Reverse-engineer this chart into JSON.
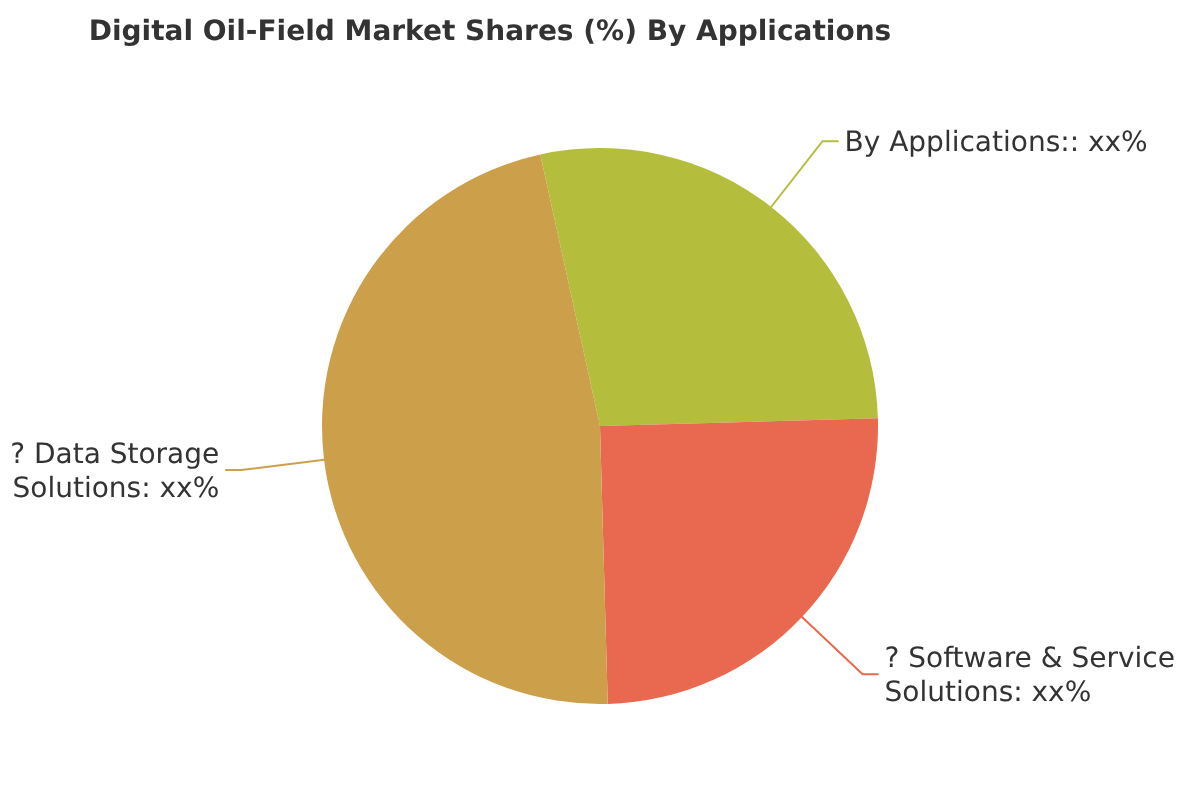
{
  "chart_data": {
    "type": "pie",
    "title": "Digital Oil-Field Market Shares (%) By Applications",
    "categories": [
      "By Applications:: xx%",
      "? Software & Service Solutions: xx%",
      "? Data Storage Solutions: xx%"
    ],
    "values": [
      28,
      25,
      47
    ],
    "colors": [
      "#b5bd3c",
      "#e8694f",
      "#cc9f4a"
    ]
  }
}
